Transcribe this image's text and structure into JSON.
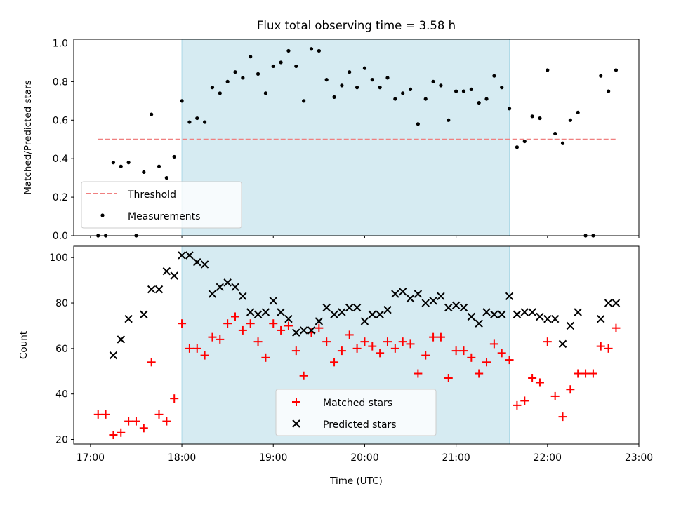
{
  "chart_data": [
    {
      "type": "scatter",
      "title": "Flux total observing time = 3.58 h",
      "ylabel": "Matched/Predicted stars",
      "xlabel": "",
      "xlim": [
        "16:49",
        "23:00"
      ],
      "ylim": [
        0,
        1.02
      ],
      "yticks": [
        "0.0",
        "0.2",
        "0.4",
        "0.6",
        "0.8",
        "1.0"
      ],
      "grid": false,
      "legend_placement": "lower-left",
      "shaded_interval": {
        "start": "18:00",
        "end": "21:35",
        "color": "#add8e6"
      },
      "threshold": {
        "name": "Threshold",
        "value": 0.5,
        "x_start": "17:05",
        "x_end": "22:45",
        "color": "#f08080"
      },
      "series": [
        {
          "name": "Measurements",
          "color": "#000000",
          "marker": "dot",
          "x": [
            "17:05",
            "17:10",
            "17:15",
            "17:20",
            "17:25",
            "17:30",
            "17:35",
            "17:40",
            "17:45",
            "17:50",
            "17:55",
            "18:00",
            "18:05",
            "18:10",
            "18:15",
            "18:20",
            "18:25",
            "18:30",
            "18:35",
            "18:40",
            "18:45",
            "18:50",
            "18:55",
            "19:00",
            "19:05",
            "19:10",
            "19:15",
            "19:20",
            "19:25",
            "19:30",
            "19:35",
            "19:40",
            "19:45",
            "19:50",
            "19:55",
            "20:00",
            "20:05",
            "20:10",
            "20:15",
            "20:20",
            "20:25",
            "20:30",
            "20:35",
            "20:40",
            "20:45",
            "20:50",
            "20:55",
            "21:00",
            "21:05",
            "21:10",
            "21:15",
            "21:20",
            "21:25",
            "21:30",
            "21:35",
            "21:40",
            "21:45",
            "21:50",
            "21:55",
            "22:00",
            "22:05",
            "22:10",
            "22:15",
            "22:20",
            "22:25",
            "22:30",
            "22:35",
            "22:40",
            "22:45"
          ],
          "y": [
            0.0,
            0.0,
            0.38,
            0.36,
            0.38,
            0.0,
            0.33,
            0.63,
            0.36,
            0.3,
            0.41,
            0.7,
            0.59,
            0.61,
            0.59,
            0.77,
            0.74,
            0.8,
            0.85,
            0.82,
            0.93,
            0.84,
            0.74,
            0.88,
            0.9,
            0.96,
            0.88,
            0.7,
            0.97,
            0.96,
            0.81,
            0.72,
            0.78,
            0.85,
            0.77,
            0.87,
            0.81,
            0.77,
            0.82,
            0.71,
            0.74,
            0.76,
            0.58,
            0.71,
            0.8,
            0.78,
            0.6,
            0.75,
            0.75,
            0.76,
            0.69,
            0.71,
            0.83,
            0.77,
            0.66,
            0.46,
            0.49,
            0.62,
            0.61,
            0.86,
            0.53,
            0.48,
            0.6,
            0.64,
            0.0,
            0.0,
            0.83,
            0.75,
            0.86
          ]
        }
      ]
    },
    {
      "type": "scatter",
      "title": "",
      "xlabel": "Time (UTC)",
      "ylabel": "Count",
      "xlim": [
        "16:49",
        "23:00"
      ],
      "ylim": [
        18,
        105
      ],
      "xticks": [
        "17:00",
        "18:00",
        "19:00",
        "20:00",
        "21:00",
        "22:00",
        "23:00"
      ],
      "yticks": [
        "20",
        "40",
        "60",
        "80",
        "100"
      ],
      "grid": false,
      "legend_placement": "bottom-center",
      "shaded_interval": {
        "start": "18:00",
        "end": "21:35",
        "color": "#add8e6"
      },
      "series": [
        {
          "name": "Matched stars",
          "color": "#ff0000",
          "marker": "plus",
          "x": [
            "17:05",
            "17:10",
            "17:15",
            "17:20",
            "17:25",
            "17:30",
            "17:35",
            "17:40",
            "17:45",
            "17:50",
            "17:55",
            "18:00",
            "18:05",
            "18:10",
            "18:15",
            "18:20",
            "18:25",
            "18:30",
            "18:35",
            "18:40",
            "18:45",
            "18:50",
            "18:55",
            "19:00",
            "19:05",
            "19:10",
            "19:15",
            "19:20",
            "19:25",
            "19:30",
            "19:35",
            "19:40",
            "19:45",
            "19:50",
            "19:55",
            "20:00",
            "20:05",
            "20:10",
            "20:15",
            "20:20",
            "20:25",
            "20:30",
            "20:35",
            "20:40",
            "20:45",
            "20:50",
            "20:55",
            "21:00",
            "21:05",
            "21:10",
            "21:15",
            "21:20",
            "21:25",
            "21:30",
            "21:35",
            "21:40",
            "21:45",
            "21:50",
            "21:55",
            "22:00",
            "22:05",
            "22:10",
            "22:15",
            "22:20",
            "22:25",
            "22:30",
            "22:35",
            "22:40",
            "22:45"
          ],
          "y": [
            31,
            31,
            22,
            23,
            28,
            28,
            25,
            54,
            31,
            28,
            38,
            71,
            60,
            60,
            57,
            65,
            64,
            71,
            74,
            68,
            71,
            63,
            56,
            71,
            68,
            70,
            59,
            48,
            67,
            69,
            63,
            54,
            59,
            66,
            60,
            63,
            61,
            58,
            63,
            60,
            63,
            62,
            49,
            57,
            65,
            65,
            47,
            59,
            59,
            56,
            49,
            54,
            62,
            58,
            55,
            35,
            37,
            47,
            45,
            63,
            39,
            30,
            42,
            49,
            49,
            49,
            61,
            60,
            69
          ]
        },
        {
          "name": "Predicted stars",
          "color": "#000000",
          "marker": "x",
          "x": [
            "17:15",
            "17:20",
            "17:25",
            "17:35",
            "17:40",
            "17:45",
            "17:50",
            "17:55",
            "18:00",
            "18:05",
            "18:10",
            "18:15",
            "18:20",
            "18:25",
            "18:30",
            "18:35",
            "18:40",
            "18:45",
            "18:50",
            "18:55",
            "19:00",
            "19:05",
            "19:10",
            "19:15",
            "19:20",
            "19:25",
            "19:30",
            "19:35",
            "19:40",
            "19:45",
            "19:50",
            "19:55",
            "20:00",
            "20:05",
            "20:10",
            "20:15",
            "20:20",
            "20:25",
            "20:30",
            "20:35",
            "20:40",
            "20:45",
            "20:50",
            "20:55",
            "21:00",
            "21:05",
            "21:10",
            "21:15",
            "21:20",
            "21:25",
            "21:30",
            "21:35",
            "21:40",
            "21:45",
            "21:50",
            "21:55",
            "22:00",
            "22:05",
            "22:10",
            "22:15",
            "22:20",
            "22:35",
            "22:40",
            "22:45"
          ],
          "y": [
            57,
            64,
            73,
            75,
            86,
            86,
            94,
            92,
            101,
            101,
            98,
            97,
            84,
            87,
            89,
            87,
            83,
            76,
            75,
            76,
            81,
            76,
            73,
            67,
            68,
            68,
            72,
            78,
            75,
            76,
            78,
            78,
            72,
            75,
            75,
            77,
            84,
            85,
            82,
            84,
            80,
            81,
            83,
            78,
            79,
            78,
            74,
            71,
            76,
            75,
            75,
            83,
            75,
            76,
            76,
            74,
            73,
            73,
            62,
            70,
            76,
            73,
            80,
            80
          ]
        }
      ]
    }
  ]
}
